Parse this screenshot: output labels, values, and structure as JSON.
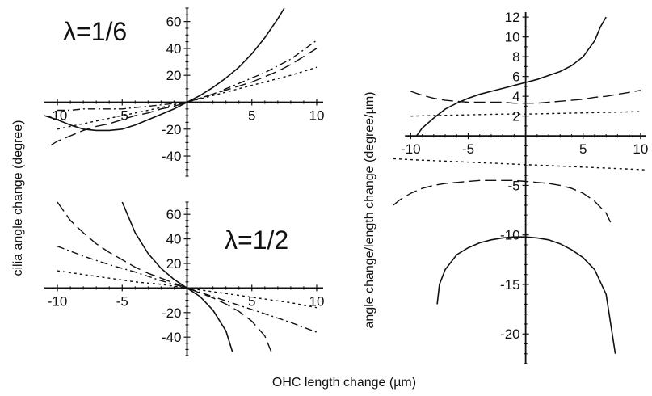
{
  "figure": {
    "xlabel": "OHC length change (µm)",
    "ylabel_left": "cilia angle change (degree)",
    "ylabel_right": "angle change/length change (degree/µm)"
  },
  "chart_data": [
    {
      "type": "line",
      "panel": "top-left",
      "title": "",
      "annotation": "λ=1/6",
      "xlim": [
        -11,
        10.5
      ],
      "ylim": [
        -55,
        70
      ],
      "xticks": [
        -10,
        -5,
        5,
        10
      ],
      "yticks": [
        60,
        40,
        20,
        -20,
        -40
      ],
      "tick_labels_x": [
        "-10",
        "-5",
        "5",
        "10"
      ],
      "tick_labels_y": [
        "60",
        "40",
        "20",
        "-20",
        "-40"
      ],
      "series": [
        {
          "style": "solid",
          "x": [
            -11,
            -10,
            -9,
            -8,
            -7,
            -6,
            -5,
            -4,
            -3,
            -2,
            -1,
            0,
            1,
            2,
            3,
            4,
            5,
            6,
            7,
            7.5
          ],
          "y": [
            -10,
            -13,
            -17,
            -20,
            -21,
            -21,
            -20,
            -17,
            -13,
            -9,
            -5,
            0,
            5,
            11,
            18,
            26,
            36,
            48,
            62,
            72
          ]
        },
        {
          "style": "long-dash",
          "x": [
            -10.5,
            -10,
            -9,
            -8,
            -7,
            -6,
            -5,
            -4,
            -3,
            -2,
            -1,
            0,
            1,
            2,
            3,
            4,
            5,
            6,
            7,
            8,
            9,
            10
          ],
          "y": [
            -32,
            -29,
            -25,
            -21,
            -18,
            -16,
            -13,
            -10,
            -8,
            -5,
            -3,
            0,
            3,
            6,
            9,
            12,
            15,
            19,
            23,
            28,
            34,
            40
          ]
        },
        {
          "style": "dot-dash",
          "x": [
            -10,
            -9,
            -8,
            -7,
            -6,
            -5,
            -4,
            -3,
            -2,
            -1,
            0,
            1,
            2,
            3,
            4,
            5,
            6,
            7,
            8,
            9,
            10
          ],
          "y": [
            -6,
            -6,
            -5,
            -5,
            -5,
            -5,
            -4,
            -3,
            -2,
            -1,
            0,
            3,
            6,
            10,
            14,
            18,
            22,
            27,
            32,
            39,
            46
          ]
        },
        {
          "style": "dotted",
          "x": [
            -10,
            -8,
            -6,
            -4,
            -2,
            0,
            2,
            4,
            6,
            8,
            10
          ],
          "y": [
            -20,
            -16,
            -12,
            -8,
            -4,
            0,
            5,
            10,
            15,
            20,
            26
          ]
        }
      ]
    },
    {
      "type": "line",
      "panel": "bottom-left",
      "title": "",
      "annotation": "λ=1/2",
      "xlim": [
        -11,
        10.5
      ],
      "ylim": [
        -55,
        70
      ],
      "xticks": [
        -10,
        -5,
        5,
        10
      ],
      "yticks": [
        60,
        40,
        20,
        -20,
        -40
      ],
      "tick_labels_x": [
        "-10",
        "-5",
        "5",
        "10"
      ],
      "tick_labels_y": [
        "60",
        "40",
        "20",
        "-20",
        "-40"
      ],
      "series": [
        {
          "style": "solid",
          "x": [
            -5,
            -4,
            -3,
            -2,
            -1,
            0,
            1,
            2,
            3,
            3.5
          ],
          "y": [
            70,
            45,
            28,
            16,
            7,
            0,
            -7,
            -18,
            -35,
            -52
          ]
        },
        {
          "style": "long-dash",
          "x": [
            -10,
            -9,
            -8,
            -7,
            -6,
            -5,
            -4,
            -3,
            -2,
            -1,
            0,
            1,
            2,
            3,
            4,
            5,
            6,
            6.5
          ],
          "y": [
            70,
            55,
            45,
            36,
            29,
            23,
            17,
            12,
            8,
            4,
            0,
            -4,
            -8,
            -13,
            -19,
            -27,
            -39,
            -52
          ]
        },
        {
          "style": "dot-dash",
          "x": [
            -10,
            -8,
            -6,
            -4,
            -2,
            0,
            2,
            4,
            6,
            8,
            10
          ],
          "y": [
            34,
            26,
            19,
            13,
            6,
            0,
            -7,
            -14,
            -21,
            -28,
            -36
          ]
        },
        {
          "style": "dotted",
          "x": [
            -10,
            -8,
            -6,
            -4,
            -2,
            0,
            2,
            4,
            6,
            8,
            10
          ],
          "y": [
            14,
            11,
            8,
            5,
            3,
            0,
            -3,
            -6,
            -9,
            -12,
            -16
          ]
        }
      ]
    },
    {
      "type": "line",
      "panel": "right",
      "title": "",
      "xlim": [
        -11.5,
        10.5
      ],
      "ylim": [
        -23,
        12.5
      ],
      "xticks": [
        -10,
        -5,
        5,
        10
      ],
      "yticks": [
        12,
        10,
        8,
        6,
        4,
        2,
        -5,
        -10,
        -15,
        -20
      ],
      "tick_labels_x": [
        "-10",
        "-5",
        "5",
        "10"
      ],
      "tick_labels_y": [
        "12",
        "10",
        "8",
        "6",
        "4",
        "2",
        "-5",
        "-10",
        "-15",
        "-20"
      ],
      "series": [
        {
          "style": "solid",
          "x": [
            -9.5,
            -9,
            -8,
            -7,
            -6,
            -5,
            -4,
            -3,
            -2,
            -1,
            0,
            1,
            2,
            3,
            4,
            5,
            6,
            6.5,
            7
          ],
          "y": [
            0,
            0.8,
            1.8,
            2.7,
            3.3,
            3.8,
            4.2,
            4.5,
            4.8,
            5.1,
            5.4,
            5.7,
            6.1,
            6.5,
            7.1,
            8.0,
            9.6,
            11,
            12
          ]
        },
        {
          "style": "solid",
          "x": [
            -7.7,
            -7.5,
            -7,
            -6,
            -5,
            -4,
            -3,
            -2,
            -1,
            0,
            1,
            2,
            3,
            4,
            5,
            6,
            7,
            7.8
          ],
          "y": [
            -17,
            -15,
            -13.5,
            -12,
            -11.3,
            -10.8,
            -10.5,
            -10.3,
            -10.2,
            -10.2,
            -10.3,
            -10.5,
            -10.9,
            -11.5,
            -12.3,
            -13.5,
            -16,
            -22
          ]
        },
        {
          "style": "long-dash",
          "x": [
            -10,
            -9,
            -8,
            -7,
            -6,
            -5,
            -4,
            -3,
            -2,
            -1,
            0,
            1,
            2,
            3,
            4,
            5,
            6,
            7,
            8,
            9,
            10
          ],
          "y": [
            4.5,
            4.1,
            3.8,
            3.6,
            3.5,
            3.4,
            3.4,
            3.4,
            3.4,
            3.3,
            3.3,
            3.3,
            3.4,
            3.5,
            3.6,
            3.7,
            3.9,
            4.0,
            4.2,
            4.4,
            4.6
          ]
        },
        {
          "style": "long-dash",
          "x": [
            -11.5,
            -11,
            -10,
            -9,
            -8,
            -7,
            -6,
            -5,
            -4,
            -3,
            -2,
            -1,
            0,
            1,
            2,
            3,
            4,
            5,
            6,
            7,
            7.5
          ],
          "y": [
            -7,
            -6.5,
            -5.8,
            -5.3,
            -5.0,
            -4.8,
            -4.7,
            -4.6,
            -4.5,
            -4.5,
            -4.5,
            -4.5,
            -4.6,
            -4.7,
            -4.8,
            -5.0,
            -5.3,
            -5.8,
            -6.6,
            -7.8,
            -9
          ]
        },
        {
          "style": "dotted",
          "x": [
            -10,
            -8,
            -6,
            -4,
            -2,
            0,
            2,
            4,
            6,
            8,
            10
          ],
          "y": [
            2.0,
            2.05,
            2.1,
            2.15,
            2.2,
            2.2,
            2.25,
            2.3,
            2.35,
            2.4,
            2.45
          ]
        },
        {
          "style": "dotted",
          "x": [
            -11.5,
            -10,
            -8,
            -6,
            -4,
            -2,
            0,
            2,
            4,
            6,
            8,
            10,
            10.5
          ],
          "y": [
            -2.3,
            -2.4,
            -2.5,
            -2.6,
            -2.7,
            -2.8,
            -2.9,
            -3.0,
            -3.1,
            -3.2,
            -3.3,
            -3.4,
            -3.45
          ]
        }
      ]
    }
  ]
}
